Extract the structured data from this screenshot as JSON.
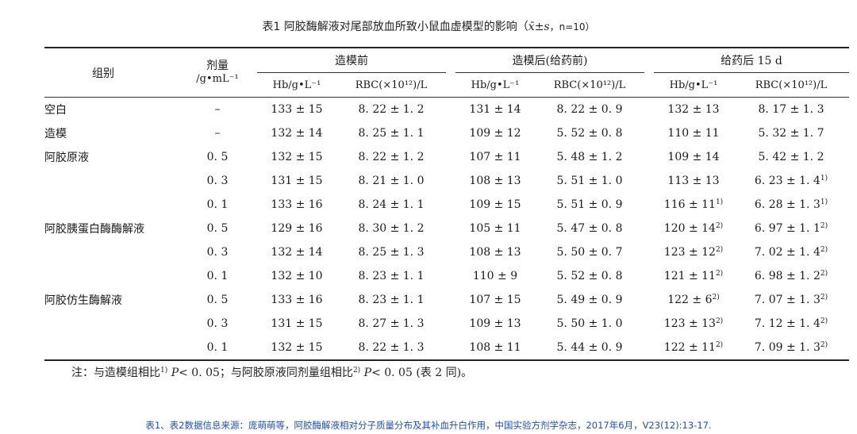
{
  "title": {
    "main": "表1 阿胶酶解液对尾部放血所致小鼠血虚模型的影响（",
    "stat": "x̄±s",
    "n": "，n=10）"
  },
  "header": {
    "group": "组别",
    "dose_top": "剂量",
    "dose_unit": "/g•mL⁻¹",
    "periods": [
      "造模前",
      "造模后(给药前)",
      "给药后 15 d"
    ],
    "hb": "Hb/g•L⁻¹",
    "rbc": "RBC(×10¹²)/L"
  },
  "rows": [
    {
      "group": "空白",
      "dose": "–",
      "hb1": "133 ± 15",
      "rbc1": "8. 22 ± 1. 2",
      "hb2": "131 ± 14",
      "rbc2": "8. 22 ± 0. 9",
      "hb3": "132 ± 13",
      "hb3_sup": "",
      "rbc3": "8. 17 ± 1. 3",
      "rbc3_sup": ""
    },
    {
      "group": "造模",
      "dose": "–",
      "hb1": "132 ± 14",
      "rbc1": "8. 25 ± 1. 1",
      "hb2": "109 ± 12",
      "rbc2": "5. 52 ± 0. 8",
      "hb3": "110 ± 11",
      "hb3_sup": "",
      "rbc3": "5. 32 ± 1. 7",
      "rbc3_sup": ""
    },
    {
      "group": "阿胶原液",
      "dose": "0. 5",
      "hb1": "132 ± 15",
      "rbc1": "8. 22 ± 1. 2",
      "hb2": "107 ± 11",
      "rbc2": "5. 48 ± 1. 2",
      "hb3": "109 ± 14",
      "hb3_sup": "",
      "rbc3": "5. 42 ± 1. 2",
      "rbc3_sup": ""
    },
    {
      "group": "",
      "dose": "0. 3",
      "hb1": "131 ± 15",
      "rbc1": "8. 21 ± 1. 0",
      "hb2": "108 ± 13",
      "rbc2": "5. 51 ± 1. 0",
      "hb3": "113 ± 13",
      "hb3_sup": "",
      "rbc3": "6. 23 ± 1. 4",
      "rbc3_sup": "1)"
    },
    {
      "group": "",
      "dose": "0. 1",
      "hb1": "133 ± 16",
      "rbc1": "8. 24 ± 1. 1",
      "hb2": "109 ± 15",
      "rbc2": "5. 51 ± 0. 9",
      "hb3": "116 ± 11",
      "hb3_sup": "1)",
      "rbc3": "6. 28 ± 1. 3",
      "rbc3_sup": "1)"
    },
    {
      "group": "阿胶胰蛋白酶酶解液",
      "dose": "0. 5",
      "hb1": "129 ± 16",
      "rbc1": "8. 30 ± 1. 2",
      "hb2": "105 ± 11",
      "rbc2": "5. 47 ± 0. 8",
      "hb3": "120 ± 14",
      "hb3_sup": "2)",
      "rbc3": "6. 97 ± 1. 1",
      "rbc3_sup": "2)"
    },
    {
      "group": "",
      "dose": "0. 3",
      "hb1": "132 ± 14",
      "rbc1": "8. 25 ± 1. 3",
      "hb2": "108 ± 13",
      "rbc2": "5. 50 ± 0. 7",
      "hb3": "123 ± 12",
      "hb3_sup": "2)",
      "rbc3": "7. 02 ± 1. 4",
      "rbc3_sup": "2)"
    },
    {
      "group": "",
      "dose": "0. 1",
      "hb1": "132 ± 10",
      "rbc1": "8. 23 ± 1. 1",
      "hb2": "110 ± 9",
      "rbc2": "5. 52 ± 0. 8",
      "hb3": "121 ± 11",
      "hb3_sup": "2)",
      "rbc3": "6. 98 ± 1. 2",
      "rbc3_sup": "2)"
    },
    {
      "group": "阿胶仿生酶解液",
      "dose": "0. 5",
      "hb1": "133 ± 16",
      "rbc1": "8. 23 ± 1. 1",
      "hb2": "107 ± 15",
      "rbc2": "5. 49 ± 0. 9",
      "hb3": "122 ± 6",
      "hb3_sup": "2)",
      "rbc3": "7. 07 ± 1. 3",
      "rbc3_sup": "2)"
    },
    {
      "group": "",
      "dose": "0. 3",
      "hb1": "131 ± 15",
      "rbc1": "8. 27 ± 1. 3",
      "hb2": "109 ± 13",
      "rbc2": "5. 50 ± 1. 0",
      "hb3": "123 ± 13",
      "hb3_sup": "2)",
      "rbc3": "7. 12 ± 1. 4",
      "rbc3_sup": "2)"
    },
    {
      "group": "",
      "dose": "0. 1",
      "hb1": "132 ± 15",
      "rbc1": "8. 22 ± 1. 3",
      "hb2": "108 ± 11",
      "rbc2": "5. 44 ± 0. 9",
      "hb3": "122 ± 11",
      "hb3_sup": "2)",
      "rbc3": "7. 09 ± 1. 3",
      "rbc3_sup": "2)"
    }
  ],
  "note": {
    "a": "注：与造模组相比",
    "sup1": "1)",
    "b": "P",
    "c": "< 0. 05；与阿胶原液同剂量组相比",
    "sup2": "2)",
    "d": "P",
    "e": "< 0. 05 (表 2 同)。"
  },
  "source": "表1、表2数据信息来源：庞萌萌等，阿胶酶解液相对分子质量分布及其补血升白作用，中国实验方剂学杂志，2017年6月，V23(12):13-17.",
  "colors": {
    "source_text": "#1f4fb4",
    "rule": "#222222"
  }
}
